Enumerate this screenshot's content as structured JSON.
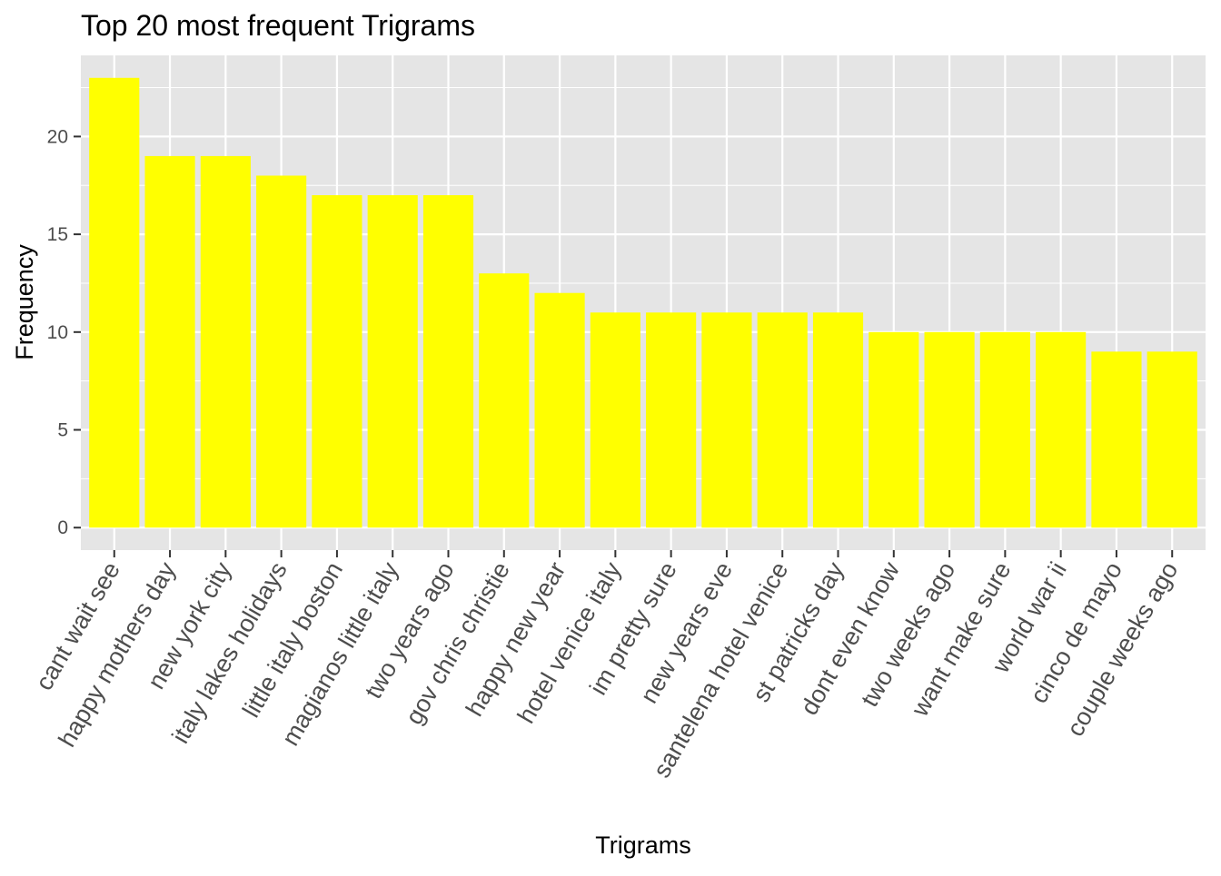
{
  "chart_data": {
    "type": "bar",
    "title": "Top 20 most frequent Trigrams",
    "xlabel": "Trigrams",
    "ylabel": "Frequency",
    "categories": [
      "cant wait see",
      "happy mothers day",
      "new york city",
      "italy lakes holidays",
      "little italy boston",
      "magianos little italy",
      "two years ago",
      "gov chris christie",
      "happy new year",
      "hotel venice italy",
      "im pretty sure",
      "new years eve",
      "santelena hotel venice",
      "st patricks day",
      "dont even know",
      "two weeks ago",
      "want make sure",
      "world war ii",
      "cinco de mayo",
      "couple weeks ago"
    ],
    "values": [
      23,
      19,
      19,
      18,
      17,
      17,
      17,
      13,
      12,
      11,
      11,
      11,
      11,
      11,
      10,
      10,
      10,
      10,
      9,
      9
    ],
    "yticks": [
      0,
      5,
      10,
      15,
      20
    ],
    "ylim": [
      -1.15,
      24.15
    ],
    "grid": true,
    "bar_color": "#FFFF00",
    "panel_background": "#E5E5E5",
    "grid_color": "#FFFFFF",
    "tick_color": "#333333"
  }
}
